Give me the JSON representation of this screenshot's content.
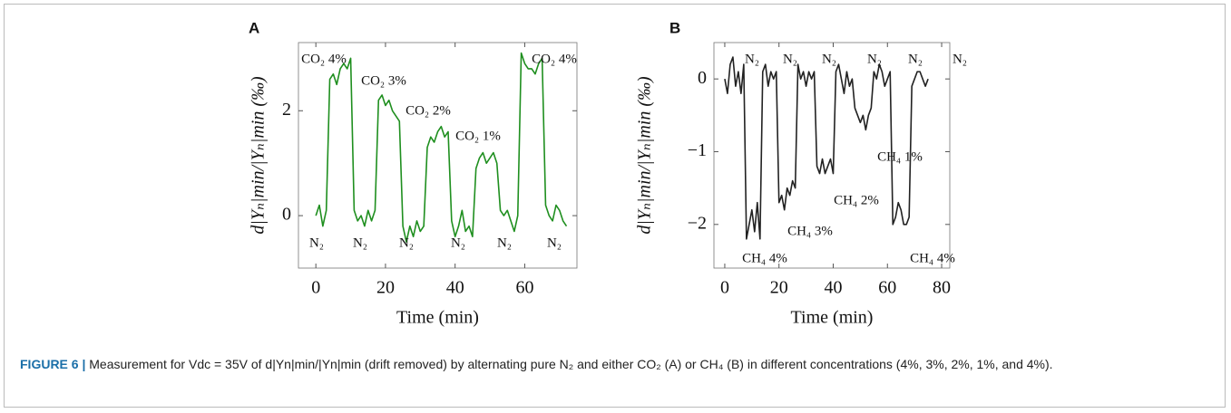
{
  "chart_data": [
    {
      "type": "line",
      "panel": "A",
      "color": "#1f8f1f",
      "ylabel": "d|Yₙ|min/|Yₙ|min (‰)",
      "xlabel": "Time (min)",
      "xlim": [
        -5,
        75
      ],
      "xticks": [
        0,
        20,
        40,
        60
      ],
      "ylim": [
        -1,
        3.3
      ],
      "yticks": [
        0,
        2
      ],
      "annotations": [
        "CO₂ 4%",
        "CO₂ 3%",
        "CO₂ 2%",
        "CO₂ 1%",
        "CO₂ 4%",
        "N₂",
        "N₂",
        "N₂",
        "N₂",
        "N₂",
        "N₂"
      ],
      "x": [
        0,
        1,
        2,
        3,
        4,
        5,
        6,
        7,
        8,
        9,
        10,
        11,
        12,
        13,
        14,
        15,
        16,
        17,
        18,
        19,
        20,
        21,
        22,
        23,
        24,
        25,
        26,
        27,
        28,
        29,
        30,
        31,
        32,
        33,
        34,
        35,
        36,
        37,
        38,
        39,
        40,
        41,
        42,
        43,
        44,
        45,
        46,
        47,
        48,
        49,
        50,
        51,
        52,
        53,
        54,
        55,
        56,
        57,
        58,
        59,
        60,
        61,
        62,
        63,
        64,
        65,
        66,
        67,
        68,
        69,
        70,
        71,
        72
      ],
      "values": [
        0.0,
        0.2,
        -0.2,
        0.1,
        2.6,
        2.7,
        2.5,
        2.8,
        2.9,
        2.8,
        3.0,
        0.1,
        -0.1,
        0.0,
        -0.2,
        0.1,
        -0.1,
        0.1,
        2.2,
        2.3,
        2.1,
        2.2,
        2.0,
        1.9,
        1.8,
        -0.2,
        -0.5,
        -0.2,
        -0.4,
        -0.1,
        -0.3,
        -0.2,
        1.3,
        1.5,
        1.4,
        1.6,
        1.7,
        1.5,
        1.6,
        -0.1,
        -0.4,
        -0.2,
        0.1,
        -0.3,
        -0.2,
        -0.4,
        0.9,
        1.1,
        1.2,
        1.0,
        1.1,
        1.2,
        1.0,
        0.1,
        0.0,
        0.1,
        -0.1,
        -0.3,
        0.0,
        3.1,
        2.9,
        2.8,
        2.8,
        2.7,
        2.9,
        3.0,
        0.2,
        0.0,
        -0.1,
        0.2,
        0.1,
        -0.1,
        -0.2
      ]
    },
    {
      "type": "line",
      "panel": "B",
      "color": "#222222",
      "ylabel": "d|Yₙ|min/|Yₙ|min (‰)",
      "xlabel": "Time (min)",
      "xlim": [
        -4,
        83
      ],
      "xticks": [
        0,
        20,
        40,
        60,
        80
      ],
      "ylim": [
        -2.6,
        0.5
      ],
      "yticks": [
        {
          "value": -2,
          "label": "−2"
        },
        {
          "value": -1,
          "label": "−1"
        },
        0
      ],
      "annotations": [
        "N₂",
        "N₂",
        "N₂",
        "N₂",
        "N₂",
        "N₂",
        "CH₄ 4%",
        "CH₄ 3%",
        "CH₄ 2%",
        "CH₄ 1%",
        "CH₄ 4%"
      ],
      "x": [
        0,
        1,
        2,
        3,
        4,
        5,
        6,
        7,
        8,
        9,
        10,
        11,
        12,
        13,
        14,
        15,
        16,
        17,
        18,
        19,
        20,
        21,
        22,
        23,
        24,
        25,
        26,
        27,
        28,
        29,
        30,
        31,
        32,
        33,
        34,
        35,
        36,
        37,
        38,
        39,
        40,
        41,
        42,
        43,
        44,
        45,
        46,
        47,
        48,
        49,
        50,
        51,
        52,
        53,
        54,
        55,
        56,
        57,
        58,
        59,
        60,
        61,
        62,
        63,
        64,
        65,
        66,
        67,
        68,
        69,
        70,
        71,
        72,
        73,
        74,
        75
      ],
      "values": [
        0.0,
        -0.2,
        0.2,
        0.3,
        -0.1,
        0.1,
        -0.2,
        0.2,
        -2.2,
        -2.0,
        -1.8,
        -2.1,
        -1.7,
        -2.2,
        0.1,
        0.2,
        -0.1,
        0.1,
        0.0,
        0.1,
        -1.7,
        -1.6,
        -1.8,
        -1.5,
        -1.6,
        -1.4,
        -1.5,
        0.2,
        0.0,
        0.1,
        -0.1,
        0.1,
        0.0,
        0.1,
        -1.2,
        -1.3,
        -1.1,
        -1.3,
        -1.2,
        -1.1,
        -1.3,
        0.1,
        0.2,
        0.0,
        -0.2,
        0.1,
        -0.1,
        0.0,
        -0.4,
        -0.5,
        -0.6,
        -0.5,
        -0.7,
        -0.5,
        -0.4,
        0.1,
        0.0,
        0.2,
        0.1,
        -0.1,
        0.0,
        0.1,
        -2.0,
        -1.9,
        -1.7,
        -1.8,
        -2.0,
        -2.0,
        -1.9,
        -0.1,
        0.0,
        0.1,
        0.1,
        0.0,
        -0.1,
        0.0
      ]
    }
  ],
  "caption": {
    "label": "FIGURE 6 |",
    "text": "Measurement for Vdc = 35V of d|Yn|min/|Yn|min (drift removed) by alternating pure N₂ and either CO₂ (A) or CH₄ (B) in different concentrations (4%, 3%, 2%, 1%, and 4%)."
  }
}
